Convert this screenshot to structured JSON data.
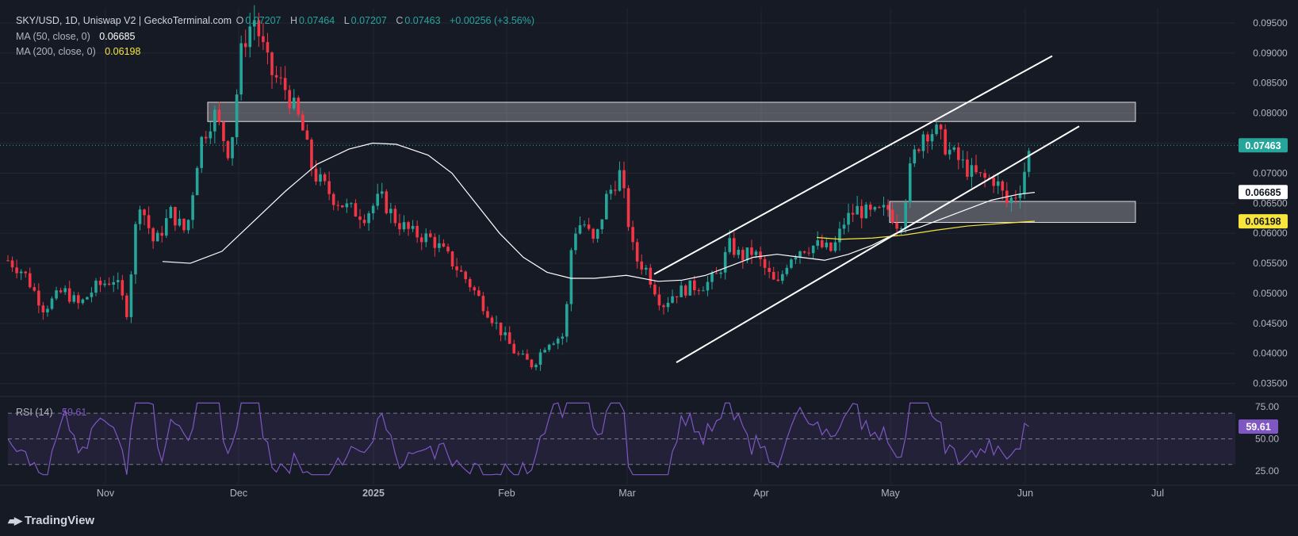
{
  "header": {
    "symbol": "SKY/USD, 1D, Uniswap V2 | GeckoTerminal.com",
    "o_label": "O",
    "o_value": "0.07207",
    "h_label": "H",
    "h_value": "0.07464",
    "l_label": "L",
    "l_value": "0.07207",
    "c_label": "C",
    "c_value": "0.07463",
    "change": "+0.00256 (+3.56%)",
    "ma50_label": "MA (50, close, 0)",
    "ma50_value": "0.06685",
    "ma200_label": "MA (200, close, 0)",
    "ma200_value": "0.06198",
    "rsi_label": "RSI (14)",
    "rsi_value": "59.61"
  },
  "colors": {
    "up": "#26a69a",
    "down": "#f23645",
    "ma50": "#ffffff",
    "ma200": "#f7e53b",
    "rsi": "#7e57c2",
    "bg": "#161a25"
  },
  "branding": {
    "logo_icon": "tradingview-logo-icon",
    "name": "TradingView"
  },
  "chart_data": {
    "type": "candlestick",
    "ylim": [
      0.0335,
      0.0975
    ],
    "y_ticks": [
      "0.09500",
      "0.09000",
      "0.08500",
      "0.08000",
      "0.07500",
      "0.07000",
      "0.06500",
      "0.06000",
      "0.05500",
      "0.05000",
      "0.04500",
      "0.04000",
      "0.03500"
    ],
    "x_ticks": [
      "Nov",
      "Dec",
      "2025",
      "Feb",
      "Mar",
      "Apr",
      "May",
      "Jun",
      "Jul"
    ],
    "price_labels": {
      "last": "0.07463",
      "ma50": "0.06685",
      "ma200": "0.06198"
    },
    "rsi": {
      "ylim": [
        15,
        80
      ],
      "ticks": [
        "75.00",
        "50.00",
        "25.00"
      ],
      "band": [
        30,
        70
      ],
      "mid": 50,
      "last": "59.61"
    }
  }
}
